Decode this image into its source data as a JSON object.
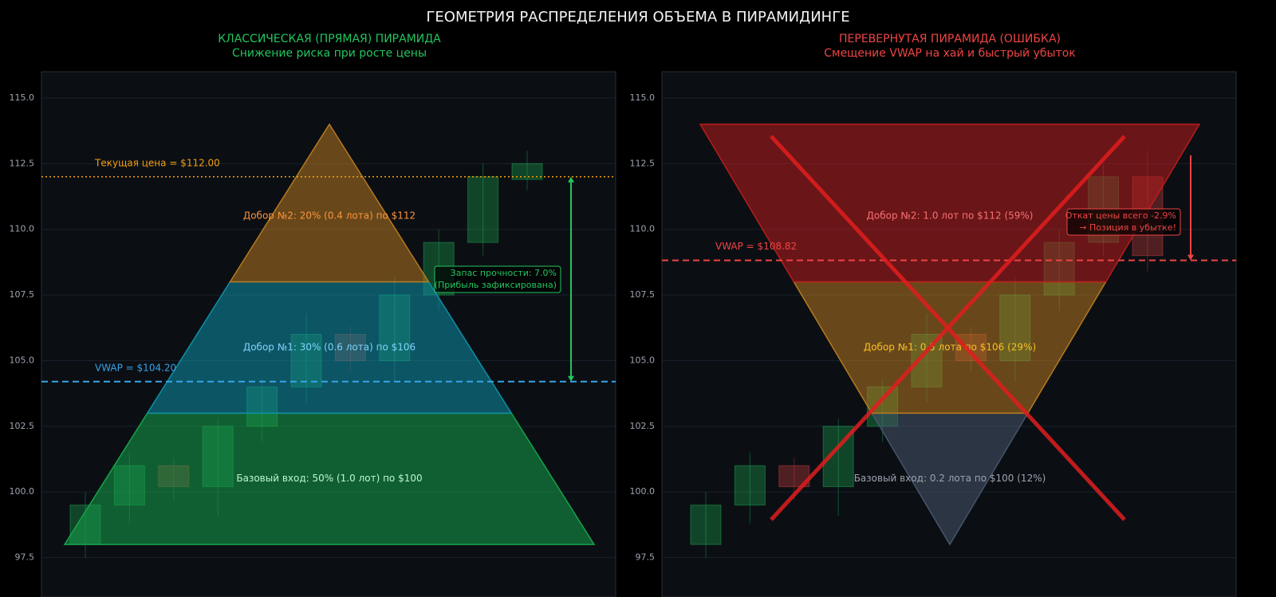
{
  "title": "ГЕОМЕТРИЯ РАСПРЕДЕЛЕНИЯ ОБЪЕМА В ПИРАМИДИНГЕ",
  "chart_data": [
    {
      "type": "candlestick",
      "title": "КЛАССИЧЕСКАЯ (ПРЯМАЯ) ПИРАМИДА",
      "subtitle": "Снижение риска при росте цены",
      "title_color": "#22c55e",
      "ylim": [
        96,
        116
      ],
      "yticks": [
        97.5,
        {
          "value": 100,
          "label": "100.0"
        },
        102.5,
        {
          "value": 105,
          "label": "105.0"
        },
        107.5,
        {
          "value": 110,
          "label": "110.0"
        },
        112.5,
        {
          "value": 115,
          "label": "115.0"
        }
      ],
      "grid": true,
      "pyramid": "up",
      "candles": {
        "open": [
          98,
          99.5,
          101,
          100.2,
          102.5,
          104,
          106,
          105,
          107.5,
          109.5,
          111.9
        ],
        "close": [
          99.5,
          101,
          100.2,
          102.5,
          104,
          106,
          105,
          107.5,
          109.5,
          112,
          112.5
        ],
        "high": [
          100,
          101.5,
          101.3,
          102.8,
          104.3,
          106.8,
          106.3,
          108.2,
          110,
          112.5,
          113
        ],
        "low": [
          97.5,
          98.8,
          99.7,
          99.1,
          101.9,
          103.4,
          104.6,
          104.2,
          106.9,
          109,
          111.5
        ]
      },
      "layers": [
        {
          "label": "Базовый вход: 50% (1.0 лот) по $100",
          "range": [
            98,
            103
          ],
          "color": "#16a34a",
          "text_color": "#bbf7d0"
        },
        {
          "label": "Добор №1: 30% (0.6 лота) по $106",
          "range": [
            103,
            108
          ],
          "color": "#0e8fa6",
          "text_color": "#7dd3fc"
        },
        {
          "label": "Добор №2: 20% (0.4 лота) по $112",
          "range": [
            108,
            114
          ],
          "color": "#b7791f",
          "text_color": "#fb923c"
        }
      ],
      "lines": [
        {
          "label": "Текущая цена = $112.00",
          "value": 112,
          "color": "#f59e0b",
          "style": "dotted"
        },
        {
          "label": "VWAP = $104.20",
          "value": 104.2,
          "color": "#38a3e8",
          "style": "dashed"
        }
      ],
      "annotation": {
        "text": [
          "Запас прочности: 7.0%",
          "(Прибыль зафиксирована)"
        ],
        "arrow": [
          112,
          104.2
        ],
        "color": "#22c55e"
      }
    },
    {
      "type": "candlestick",
      "title": "ПЕРЕВЕРНУТАЯ ПИРАМИДА (ОШИБКА)",
      "subtitle": "Смещение VWAP на хай и быстрый убыток",
      "title_color": "#ef4444",
      "ylim": [
        96,
        116
      ],
      "yticks": [
        97.5,
        {
          "value": 100,
          "label": "100.0"
        },
        102.5,
        {
          "value": 105,
          "label": "105.0"
        },
        107.5,
        {
          "value": 110,
          "label": "110.0"
        },
        112.5,
        {
          "value": 115,
          "label": "115.0"
        }
      ],
      "grid": true,
      "pyramid": "down",
      "candles": {
        "open": [
          98,
          99.5,
          101,
          100.2,
          102.5,
          104,
          106,
          105,
          107.5,
          109.5,
          112
        ],
        "close": [
          99.5,
          101,
          100.2,
          102.5,
          104,
          106,
          105,
          107.5,
          109.5,
          112,
          109
        ],
        "high": [
          100,
          101.5,
          101.3,
          102.8,
          104.3,
          106.8,
          106.3,
          108.2,
          110,
          112.5,
          113
        ],
        "low": [
          97.5,
          98.8,
          99.7,
          99.1,
          101.9,
          103.4,
          104.6,
          104.2,
          106.9,
          109,
          108.4
        ]
      },
      "layers": [
        {
          "label": "Базовый вход: 0.2 лота по $100 (12%)",
          "range": [
            98,
            103
          ],
          "color": "#475569",
          "text_color": "#9ca3af"
        },
        {
          "label": "Добор №1: 0.5 лота по $106 (29%)",
          "range": [
            103,
            108
          ],
          "color": "#b7791f",
          "text_color": "#fbbf24"
        },
        {
          "label": "Добор №2: 1.0 лот по $112 (59%)",
          "range": [
            108,
            114
          ],
          "color": "#b91c1c",
          "text_color": "#f87171"
        }
      ],
      "lines": [
        {
          "label": "VWAP = $108.82",
          "value": 108.82,
          "color": "#ef4444",
          "style": "dashed"
        }
      ],
      "annotation": {
        "text": [
          "Откат цены всего -2.9%",
          "→ Позиция в убытке!"
        ],
        "arrow": [
          113,
          108.82
        ],
        "color": "#ef4444"
      }
    }
  ]
}
